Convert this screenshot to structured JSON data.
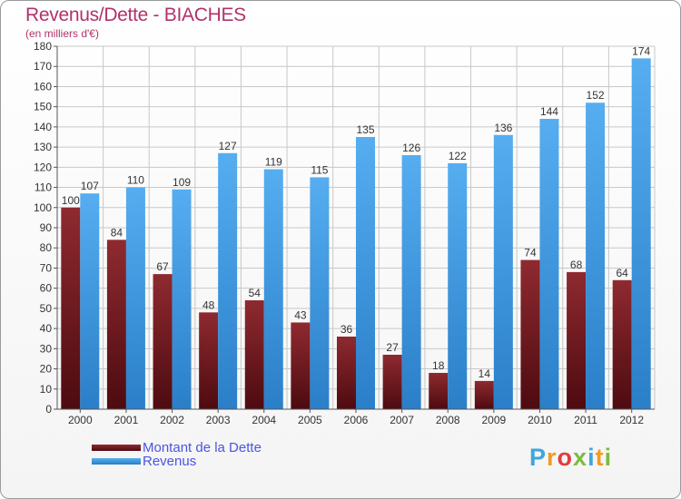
{
  "title": "Revenus/Dette - BIACHES",
  "subtitle": "(en milliers d'€)",
  "logo": {
    "text": "Proxiti",
    "letter_colors": [
      "#3da7dc",
      "#f39a1e",
      "#e23c3c",
      "#7dbb3e",
      "#3da7dc",
      "#f39a1e",
      "#7dbb3e"
    ]
  },
  "colors": {
    "dette": "#7a1c22",
    "revenus": "#3f9ae3",
    "grid": "#c8c8c8",
    "axis_text": "#333333"
  },
  "chart_data": {
    "type": "bar",
    "categories": [
      "2000",
      "2001",
      "2002",
      "2003",
      "2004",
      "2005",
      "2006",
      "2007",
      "2008",
      "2009",
      "2010",
      "2011",
      "2012"
    ],
    "series": [
      {
        "name": "Montant de la Dette",
        "values": [
          100,
          84,
          67,
          48,
          54,
          43,
          36,
          27,
          18,
          14,
          74,
          68,
          64
        ]
      },
      {
        "name": "Revenus",
        "values": [
          107,
          110,
          109,
          127,
          119,
          115,
          135,
          126,
          122,
          136,
          144,
          152,
          174
        ]
      }
    ],
    "ylim": [
      0,
      180
    ],
    "ytick_step": 10,
    "grid": true,
    "legend_position": "bottom-left"
  }
}
